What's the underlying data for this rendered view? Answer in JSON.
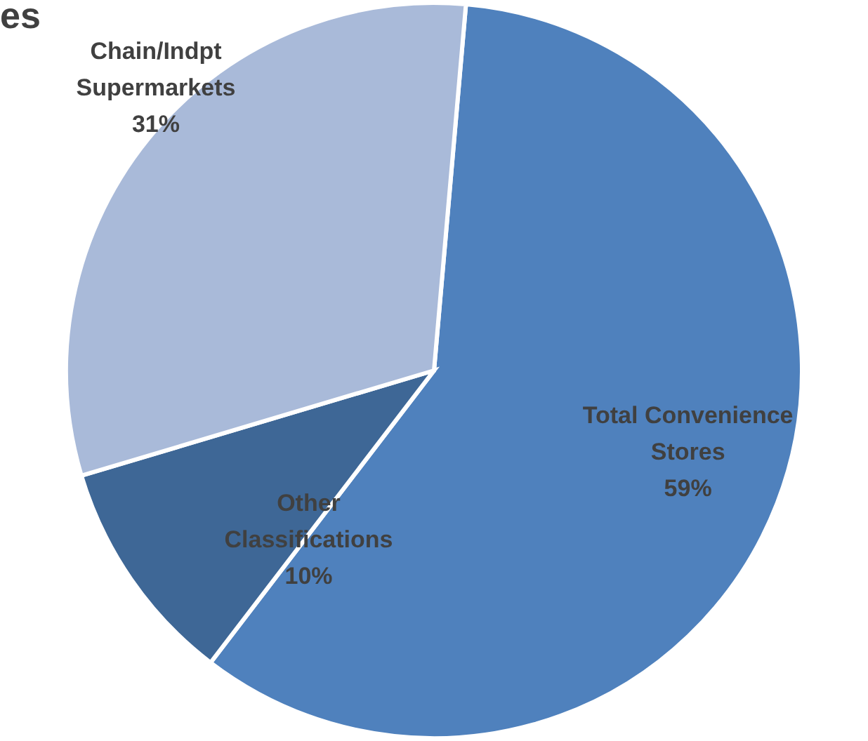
{
  "chart_data": {
    "type": "pie",
    "title": "es",
    "categories": [
      "Total Convenience Stores",
      "Other Classifications",
      "Chain/Indpt Supermarkets"
    ],
    "values": [
      59,
      10,
      31
    ],
    "value_labels": [
      "59%",
      "10%",
      "31%"
    ],
    "colors": [
      "#4f81bd",
      "#3e6796",
      "#a9bad9"
    ]
  }
}
